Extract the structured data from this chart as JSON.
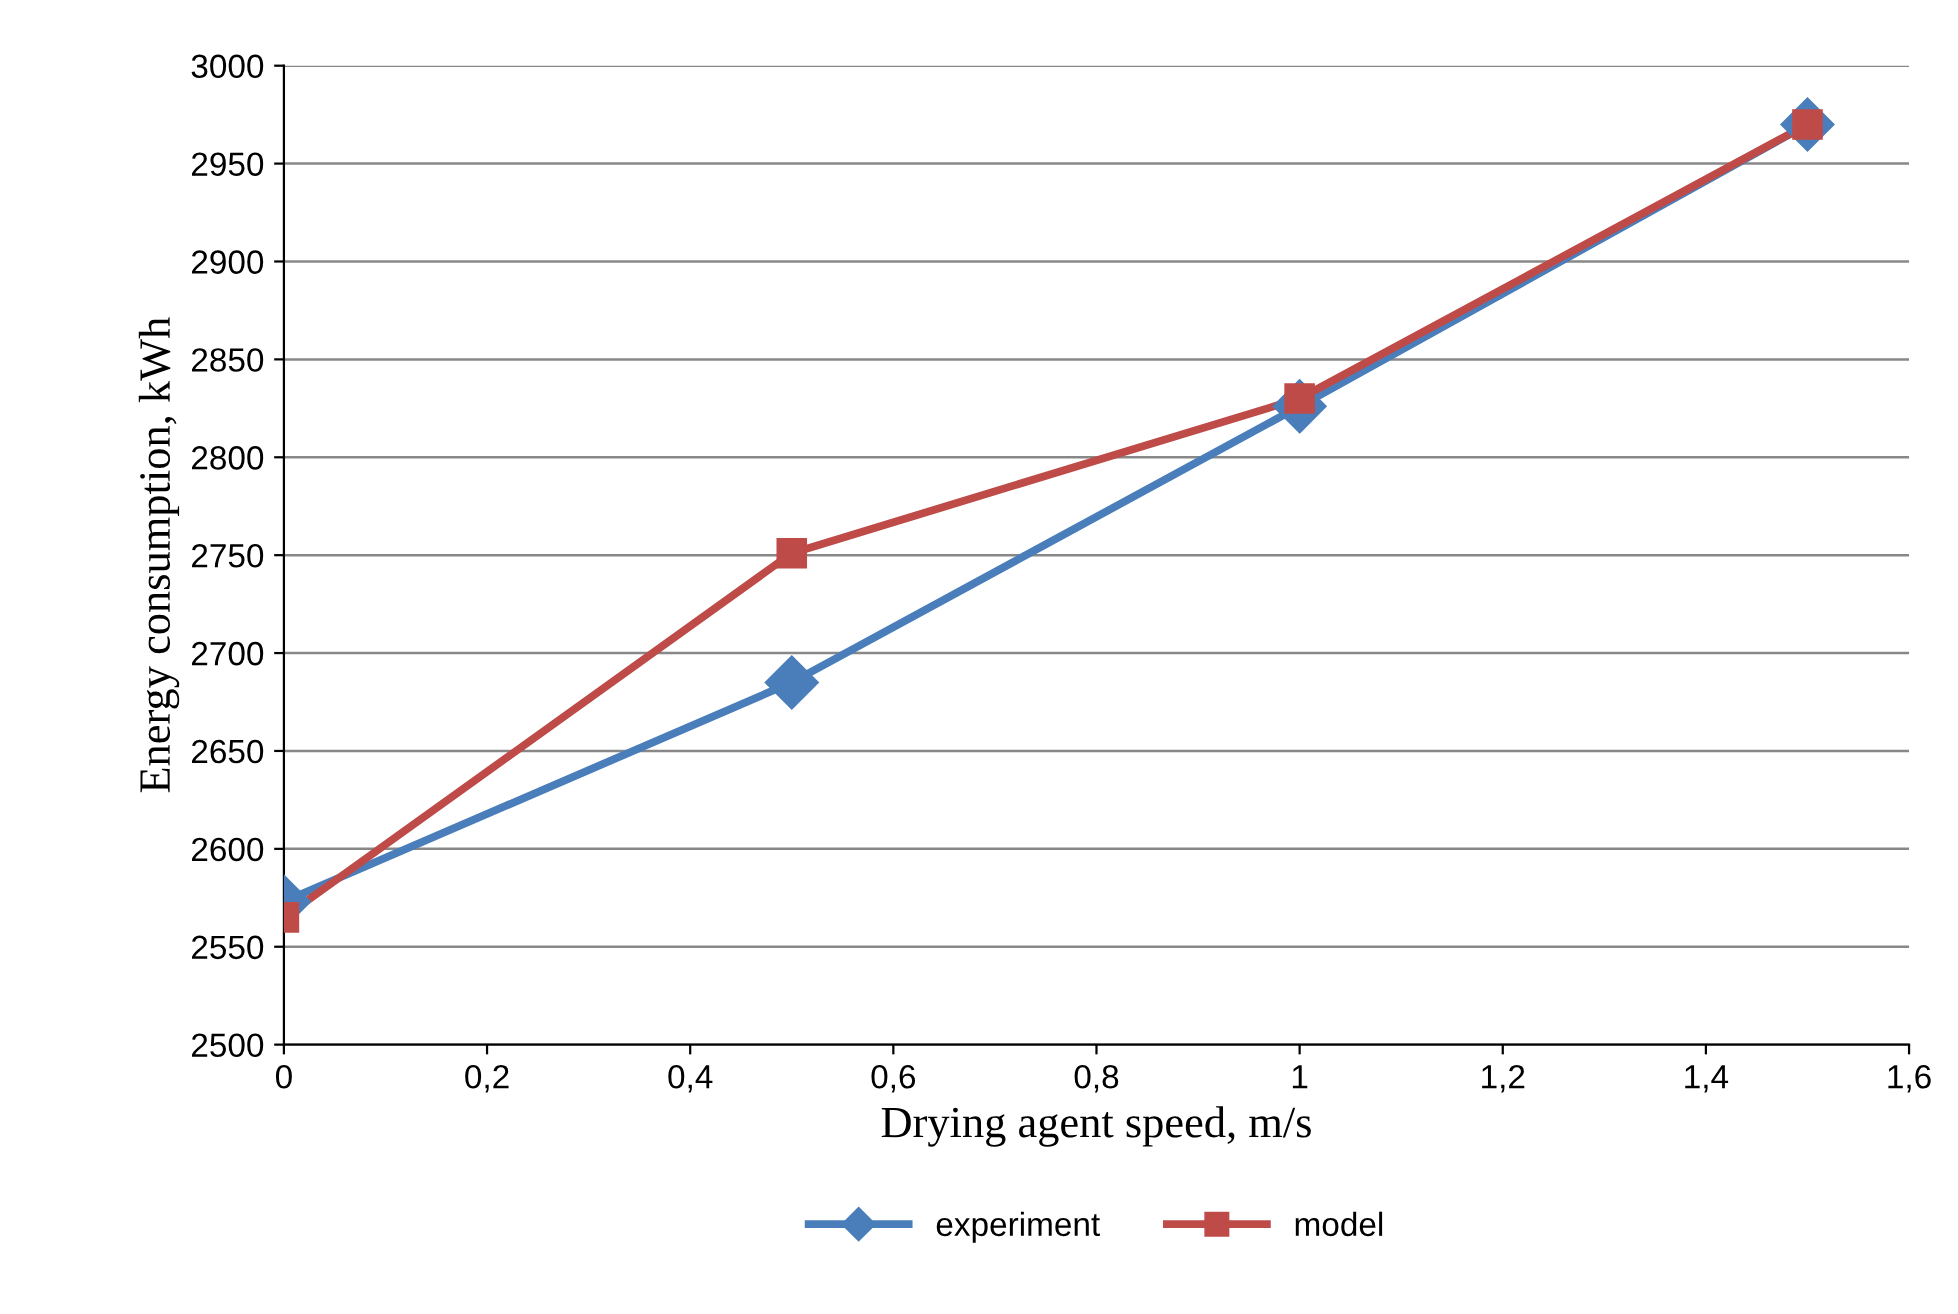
{
  "chart_data": {
    "type": "line",
    "xlabel": "Drying agent speed, m/s",
    "ylabel": "Energy consumption, kWh",
    "x": [
      0,
      0.5,
      1,
      1.5
    ],
    "series": [
      {
        "name": "experiment",
        "color": "#4a7ebb",
        "marker": "diamond",
        "values": [
          2573,
          2685,
          2826,
          2970
        ]
      },
      {
        "name": "model",
        "color": "#be4b48",
        "marker": "square",
        "values": [
          2565,
          2751,
          2830,
          2970
        ]
      }
    ],
    "xlim": [
      0,
      1.6
    ],
    "xticks": [
      0,
      {
        "value": 0.2,
        "label": "0,2"
      },
      {
        "value": 0.4,
        "label": "0,4"
      },
      {
        "value": 0.6,
        "label": "0,6"
      },
      {
        "value": 0.8,
        "label": "0,8"
      },
      1,
      {
        "value": 1.2,
        "label": "1,2"
      },
      {
        "value": 1.4,
        "label": "1,4"
      },
      {
        "value": 1.6,
        "label": "1,6"
      }
    ],
    "ylim": [
      2500,
      3000
    ],
    "yticks": [
      2500,
      2550,
      2600,
      2650,
      2700,
      2750,
      2800,
      2850,
      2900,
      2950,
      3000
    ],
    "grid": "y",
    "legend": "bottom",
    "line_style": "solid"
  }
}
